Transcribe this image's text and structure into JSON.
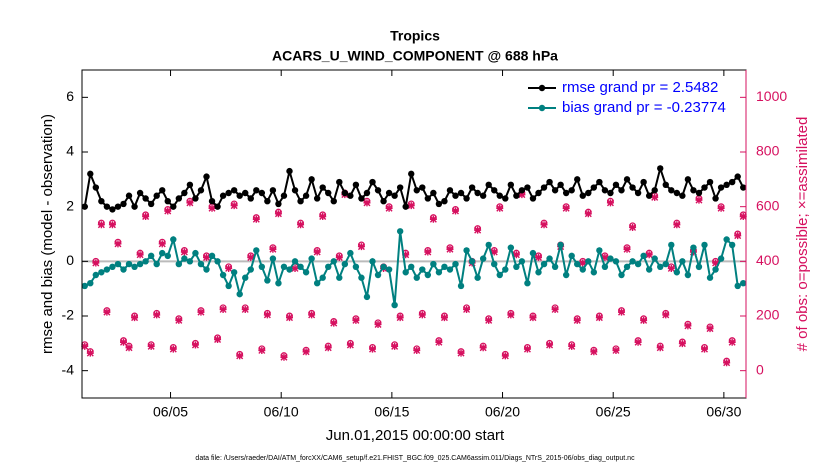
{
  "chart_data": {
    "type": "line",
    "title": "Tropics",
    "subtitle": "ACARS_U_WIND_COMPONENT @ 688 hPa",
    "y_label": "rmse and bias (model - observation)",
    "y2_label": "# of obs: o=possible; ×=assimilated",
    "x_label": "Jun.01,2015 00:00:00 start",
    "footnote": "data file: /Users/raeder/DAI/ATM_forcXX/CAM6_setup/f.e21.FHIST_BGC.f09_025.CAM6assim.011/Diags_NTrS_2015-06/obs_diag_output.nc",
    "legend_position": "top-right",
    "legend_text_color": "#0000ff",
    "y2_color": "#d6105f",
    "xlim": [
      0,
      30
    ],
    "xticks": [
      {
        "value": 4,
        "label": "06/05"
      },
      {
        "value": 9,
        "label": "06/10"
      },
      {
        "value": 14,
        "label": "06/15"
      },
      {
        "value": 19,
        "label": "06/20"
      },
      {
        "value": 24,
        "label": "06/25"
      },
      {
        "value": 29,
        "label": "06/30"
      }
    ],
    "ylim": [
      -5,
      7
    ],
    "yticks": [
      -4,
      -2,
      0,
      2,
      4,
      6
    ],
    "y2lim": [
      -100,
      1100
    ],
    "y2ticks": [
      0,
      200,
      400,
      600,
      800,
      1000
    ],
    "x": [
      0.125,
      0.375,
      0.625,
      0.875,
      1.125,
      1.375,
      1.625,
      1.875,
      2.125,
      2.375,
      2.625,
      2.875,
      3.125,
      3.375,
      3.625,
      3.875,
      4.125,
      4.375,
      4.625,
      4.875,
      5.125,
      5.375,
      5.625,
      5.875,
      6.125,
      6.375,
      6.625,
      6.875,
      7.125,
      7.375,
      7.625,
      7.875,
      8.125,
      8.375,
      8.625,
      8.875,
      9.125,
      9.375,
      9.625,
      9.875,
      10.125,
      10.375,
      10.625,
      10.875,
      11.125,
      11.375,
      11.625,
      11.875,
      12.125,
      12.375,
      12.625,
      12.875,
      13.125,
      13.375,
      13.625,
      13.875,
      14.125,
      14.375,
      14.625,
      14.875,
      15.125,
      15.375,
      15.625,
      15.875,
      16.125,
      16.375,
      16.625,
      16.875,
      17.125,
      17.375,
      17.625,
      17.875,
      18.125,
      18.375,
      18.625,
      18.875,
      19.125,
      19.375,
      19.625,
      19.875,
      20.125,
      20.375,
      20.625,
      20.875,
      21.125,
      21.375,
      21.625,
      21.875,
      22.125,
      22.375,
      22.625,
      22.875,
      23.125,
      23.375,
      23.625,
      23.875,
      24.125,
      24.375,
      24.625,
      24.875,
      25.125,
      25.375,
      25.625,
      25.875,
      26.125,
      26.375,
      26.625,
      26.875,
      27.125,
      27.375,
      27.625,
      27.875,
      28.125,
      28.375,
      28.625,
      28.875,
      29.125,
      29.375,
      29.625,
      29.875
    ],
    "series": [
      {
        "name": "rmse grand pr = 2.5482",
        "color": "#000000",
        "marker": "dot",
        "axis": "y",
        "values": [
          2.0,
          3.2,
          2.7,
          2.2,
          2.0,
          1.9,
          2.0,
          2.1,
          2.4,
          2.0,
          2.5,
          2.3,
          2.1,
          2.4,
          2.6,
          2.2,
          2.0,
          2.3,
          2.5,
          2.8,
          2.3,
          2.6,
          3.1,
          2.2,
          2.0,
          2.4,
          2.5,
          2.6,
          2.4,
          2.5,
          2.3,
          2.6,
          2.5,
          2.2,
          2.6,
          2.1,
          2.4,
          3.3,
          2.6,
          2.2,
          2.4,
          3.0,
          2.3,
          2.7,
          2.5,
          2.2,
          2.9,
          2.5,
          2.4,
          2.8,
          2.3,
          2.5,
          2.9,
          2.6,
          2.2,
          2.5,
          2.4,
          2.7,
          2.0,
          3.2,
          2.6,
          2.7,
          2.3,
          2.5,
          2.1,
          2.2,
          2.6,
          2.4,
          2.5,
          2.3,
          2.7,
          2.5,
          2.4,
          2.8,
          2.6,
          2.4,
          2.3,
          2.8,
          2.4,
          2.6,
          2.7,
          2.3,
          2.5,
          2.7,
          2.9,
          2.6,
          2.8,
          2.5,
          2.6,
          3.0,
          2.4,
          2.5,
          2.7,
          2.9,
          2.6,
          2.5,
          2.8,
          2.6,
          3.0,
          2.7,
          2.5,
          2.9,
          2.4,
          2.6,
          3.4,
          2.8,
          2.6,
          2.5,
          2.4,
          3.0,
          2.6,
          2.5,
          2.7,
          2.9,
          2.3,
          2.7,
          2.8,
          2.9,
          3.1,
          2.7
        ]
      },
      {
        "name": "bias grand pr = -0.23774",
        "color": "#008080",
        "marker": "dot",
        "axis": "y",
        "values": [
          -0.9,
          -0.8,
          -0.5,
          -0.4,
          -0.3,
          -0.2,
          -0.1,
          -0.3,
          -0.1,
          -0.2,
          -0.1,
          0.0,
          0.2,
          -0.1,
          0.3,
          0.2,
          0.8,
          -0.1,
          0.1,
          0.0,
          0.3,
          -0.1,
          -0.3,
          0.2,
          0.0,
          -0.5,
          -0.9,
          -0.4,
          -1.2,
          -0.6,
          -0.3,
          0.4,
          -0.2,
          -0.7,
          0.1,
          -0.8,
          -0.2,
          -0.3,
          0.0,
          -0.2,
          -0.4,
          0.1,
          -0.8,
          -0.6,
          -0.2,
          0.0,
          -0.6,
          -0.1,
          0.3,
          -0.2,
          -0.6,
          -1.3,
          0.0,
          -0.5,
          -0.2,
          -0.3,
          -1.6,
          1.1,
          -0.4,
          -0.2,
          -0.6,
          -0.3,
          -0.5,
          -0.1,
          -0.4,
          -0.2,
          -0.3,
          -0.1,
          -0.9,
          0.4,
          0.0,
          -0.6,
          0.1,
          0.6,
          -0.1,
          -0.5,
          -0.3,
          0.5,
          -0.2,
          0.0,
          -0.8,
          0.3,
          -0.4,
          -0.1,
          0.1,
          -0.2,
          0.6,
          -0.5,
          0.2,
          -0.1,
          -0.3,
          0.0,
          -0.4,
          0.4,
          -0.2,
          0.1,
          0.0,
          -0.5,
          -0.2,
          0.0,
          -0.1,
          0.2,
          -0.3,
          0.1,
          -0.2,
          -0.1,
          0.6,
          -0.4,
          0.0,
          -0.5,
          0.5,
          -0.2,
          0.6,
          -0.6,
          -0.3,
          0.1,
          0.8,
          0.6,
          -0.9,
          -0.8
        ]
      },
      {
        "color": "#d6105f",
        "marker": "circle",
        "axis": "y2",
        "values": [
          95,
          70,
          400,
          540,
          220,
          540,
          470,
          110,
          90,
          200,
          430,
          570,
          95,
          210,
          470,
          590,
          85,
          190,
          440,
          620,
          100,
          220,
          420,
          600,
          120,
          230,
          380,
          610,
          60,
          230,
          420,
          560,
          80,
          210,
          450,
          580,
          55,
          200,
          380,
          540,
          75,
          210,
          440,
          570,
          90,
          180,
          420,
          650,
          100,
          190,
          460,
          620,
          85,
          175,
          380,
          600,
          95,
          200,
          430,
          610,
          80,
          210,
          440,
          560,
          110,
          200,
          450,
          590,
          70,
          230,
          400,
          520,
          90,
          190,
          440,
          600,
          60,
          210,
          430,
          650,
          85,
          200,
          420,
          540,
          100,
          230,
          460,
          600,
          95,
          190,
          400,
          580,
          75,
          200,
          420,
          620,
          80,
          220,
          450,
          530,
          110,
          190,
          430,
          640,
          90,
          210,
          380,
          540,
          105,
          170,
          440,
          630,
          85,
          160,
          400,
          600,
          35,
          110,
          500,
          570
        ]
      },
      {
        "color": "#d6105f",
        "marker": "x",
        "axis": "y2",
        "values": [
          89,
          64,
          394,
          534,
          214,
          534,
          464,
          104,
          84,
          194,
          424,
          564,
          89,
          204,
          464,
          584,
          79,
          184,
          434,
          614,
          94,
          214,
          414,
          594,
          114,
          224,
          374,
          604,
          54,
          224,
          414,
          554,
          74,
          204,
          444,
          574,
          49,
          194,
          374,
          534,
          69,
          204,
          434,
          564,
          84,
          174,
          414,
          644,
          94,
          184,
          454,
          614,
          79,
          169,
          374,
          594,
          89,
          194,
          424,
          604,
          74,
          204,
          434,
          554,
          104,
          194,
          444,
          584,
          64,
          224,
          394,
          514,
          84,
          184,
          434,
          594,
          54,
          204,
          424,
          644,
          79,
          194,
          414,
          534,
          94,
          224,
          454,
          594,
          89,
          184,
          394,
          574,
          69,
          194,
          414,
          614,
          74,
          214,
          444,
          524,
          104,
          184,
          424,
          634,
          84,
          204,
          374,
          534,
          99,
          164,
          434,
          624,
          79,
          154,
          394,
          594,
          29,
          104,
          494,
          564
        ]
      }
    ]
  }
}
